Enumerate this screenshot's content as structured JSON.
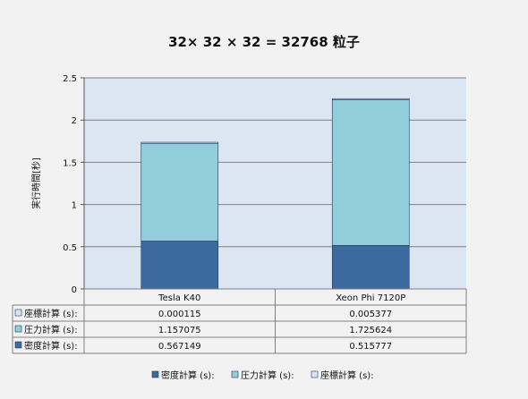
{
  "chart_data": {
    "type": "bar",
    "stacked": true,
    "title": "32× 32 × 32 = 32768 粒子",
    "ylabel": "実行時間[秒]",
    "xlabel": "",
    "ylim": [
      0,
      2.5
    ],
    "yticks": [
      "0",
      "0.5",
      "1",
      "1.5",
      "2",
      "2.5"
    ],
    "grid": true,
    "legend_position": "bottom",
    "categories": [
      "Tesla K40",
      "Xeon Phi 7120P"
    ],
    "series": [
      {
        "name": "密度計算 (s):",
        "values": [
          0.567149,
          0.515777
        ],
        "value_labels": [
          "0.567149",
          "0.515777"
        ],
        "color": "#3d6a9e"
      },
      {
        "name": "圧力計算 (s):",
        "values": [
          1.157075,
          1.725624
        ],
        "value_labels": [
          "1.157075",
          "1.725624"
        ],
        "color": "#92cddc"
      },
      {
        "name": "座標計算 (s):",
        "values": [
          0.000115,
          0.005377
        ],
        "value_labels": [
          "0.000115",
          "0.005377"
        ],
        "color": "#dbe5f1"
      }
    ],
    "table_row_order": [
      2,
      1,
      0
    ],
    "plot_background": "#dce6f2",
    "gridline_color": "#7f7f7f",
    "bar_outline_color": "#1f3864"
  }
}
